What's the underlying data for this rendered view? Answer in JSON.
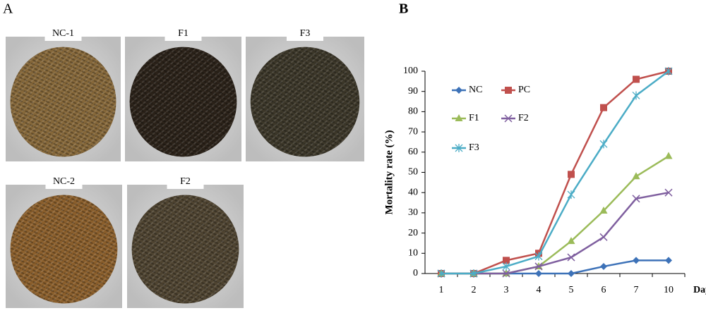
{
  "figure": {
    "panel_a": "A",
    "panel_b": "B",
    "photos": [
      "NC-1",
      "F1",
      "F3",
      "NC-2",
      "F2"
    ]
  },
  "chart_data": {
    "type": "line",
    "xlabel": "Day",
    "ylabel": "Mortality rate (%)",
    "categories": [
      "1",
      "2",
      "3",
      "4",
      "5",
      "6",
      "7",
      "10"
    ],
    "ylim": [
      0,
      100
    ],
    "yticks": [
      0,
      10,
      20,
      30,
      40,
      50,
      60,
      70,
      80,
      90,
      100
    ],
    "series": [
      {
        "name": "NC",
        "color": "#3d72b8",
        "marker": "diamond",
        "values": [
          0,
          0,
          0,
          0,
          0,
          3.5,
          6.5,
          6.5
        ]
      },
      {
        "name": "PC",
        "color": "#c0504d",
        "marker": "square",
        "values": [
          0,
          0,
          6.5,
          10,
          49,
          82,
          96,
          100
        ]
      },
      {
        "name": "F1",
        "color": "#9bbb59",
        "marker": "triangle",
        "values": [
          0,
          0,
          0,
          3.5,
          16,
          31,
          48,
          58
        ]
      },
      {
        "name": "F2",
        "color": "#7f5f9f",
        "marker": "cross",
        "values": [
          0,
          0,
          0,
          3.5,
          8,
          18,
          37,
          40
        ]
      },
      {
        "name": "F3",
        "color": "#4bacc6",
        "marker": "star",
        "values": [
          0,
          0,
          3.5,
          8.5,
          39,
          64,
          88,
          100
        ]
      }
    ]
  }
}
